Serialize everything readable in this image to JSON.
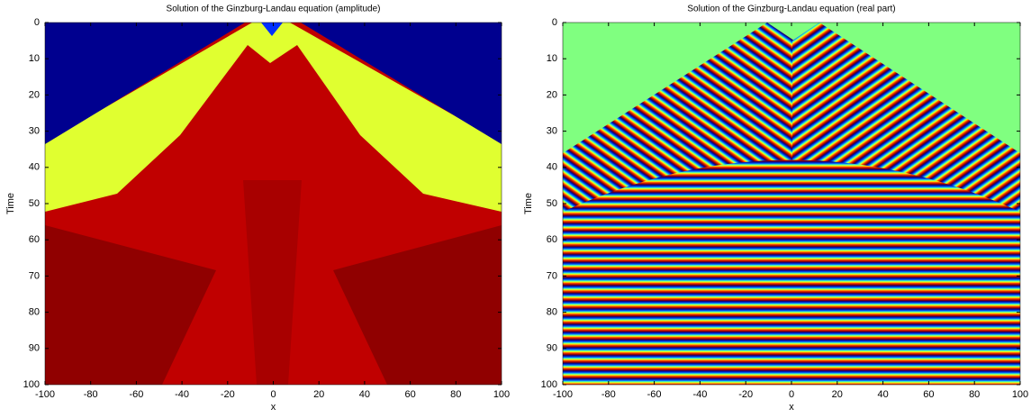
{
  "chart_data": [
    {
      "type": "heatmap",
      "title": "Solution of the Ginzburg-Landau equation (amplitude)",
      "xlabel": "x",
      "ylabel": "Time",
      "xlim": [
        -100,
        100
      ],
      "ylim": [
        100,
        0
      ],
      "xticks": [
        -100,
        -80,
        -60,
        -40,
        -20,
        0,
        20,
        40,
        60,
        80,
        100
      ],
      "yticks": [
        0,
        10,
        20,
        30,
        40,
        50,
        60,
        70,
        80,
        90,
        100
      ]
    },
    {
      "type": "heatmap",
      "title": "Solution of the Ginzburg-Landau equation (real part)",
      "xlabel": "x",
      "ylabel": "Time",
      "xlim": [
        -100,
        100
      ],
      "ylim": [
        100,
        0
      ],
      "xticks": [
        -100,
        -80,
        -60,
        -40,
        -20,
        0,
        20,
        40,
        60,
        80,
        100
      ],
      "yticks": [
        0,
        10,
        20,
        30,
        40,
        50,
        60,
        70,
        80,
        90,
        100
      ]
    }
  ]
}
